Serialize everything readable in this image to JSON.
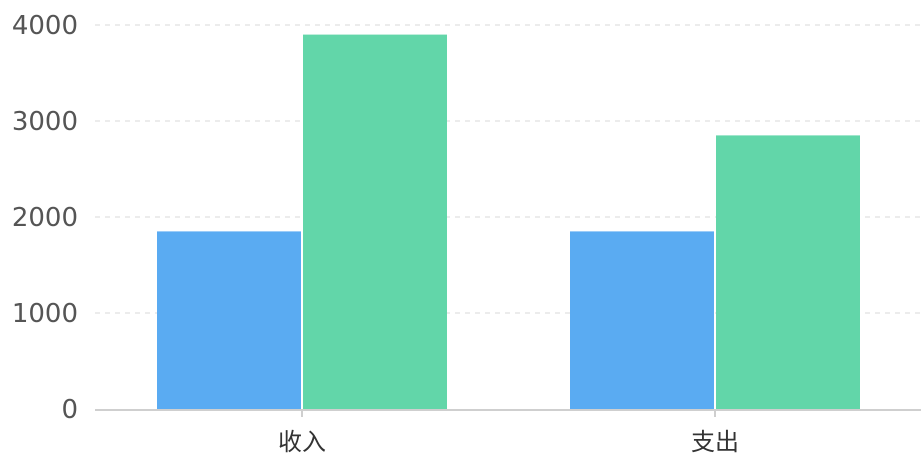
{
  "chart_data": {
    "type": "bar",
    "categories": [
      "收入",
      "支出"
    ],
    "series": [
      {
        "color": "#5aabf2",
        "values": [
          1850,
          1850
        ]
      },
      {
        "color": "#62d6a9",
        "values": [
          3900,
          2850
        ]
      }
    ],
    "ylim": [
      0,
      4000
    ],
    "yticks": [
      "0",
      "1000",
      "2000",
      "3000",
      "4000"
    ],
    "grid": true,
    "legend": "none"
  }
}
